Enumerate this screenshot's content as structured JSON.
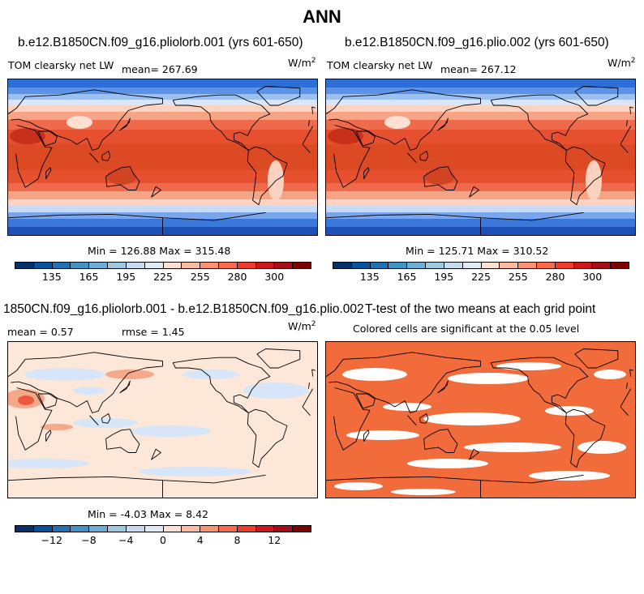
{
  "figure_title": "ANN",
  "panels": {
    "case1": {
      "title": "b.e12.B1850CN.f09_g16.pliolorb.001 (yrs 601-650)",
      "variable": "TOM clearsky net LW",
      "mean_text": "mean= 267.69",
      "units": "W/m",
      "units_exp": "2",
      "minmax": "Min = 126.88 Max = 315.48"
    },
    "case2": {
      "title": "b.e12.B1850CN.f09_g16.plio.002 (yrs 601-650)",
      "variable": "TOM clearsky net LW",
      "mean_text": "mean= 267.12",
      "units": "W/m",
      "units_exp": "2",
      "minmax": "Min = 125.71 Max = 310.52"
    },
    "diff": {
      "title": "1850CN.f09_g16.pliolorb.001 - b.e12.B1850CN.f09_g16.plio.002",
      "mean_text": "mean =    0.57",
      "rmse_text": "rmse =    1.45",
      "units": "W/m",
      "units_exp": "2",
      "minmax": "Min =  -4.03 Max =   8.42"
    },
    "ttest": {
      "title": "T-test of the two means at each grid point",
      "subtitle": "Colored cells are significant at the 0.05 level"
    }
  },
  "colorbars": {
    "abs": {
      "colors": [
        "#08306b",
        "#08519c",
        "#2171b5",
        "#4292c6",
        "#6baed6",
        "#9ecae1",
        "#c6dbef",
        "#deebf7",
        "#fee0d2",
        "#fcbba1",
        "#fc9272",
        "#fb6a4a",
        "#ef3b2c",
        "#cb181d",
        "#a50f15",
        "#7f0000"
      ],
      "tick_labels": [
        "135",
        "165",
        "195",
        "225",
        "255",
        "280",
        "300"
      ]
    },
    "diff": {
      "colors": [
        "#08306b",
        "#08519c",
        "#2171b5",
        "#4292c6",
        "#6baed6",
        "#9ecae1",
        "#c6dbef",
        "#deebf7",
        "#fee0d2",
        "#fcbba1",
        "#fc9272",
        "#fb6a4a",
        "#ef3b2c",
        "#cb181d",
        "#a50f15",
        "#7f0000"
      ],
      "tick_labels": [
        "-12",
        "-8",
        "-4",
        "0",
        "4",
        "8",
        "12"
      ]
    }
  },
  "colors": {
    "ocean_tropics": "#e34a33",
    "ttest_fill": "#f26b3a"
  }
}
